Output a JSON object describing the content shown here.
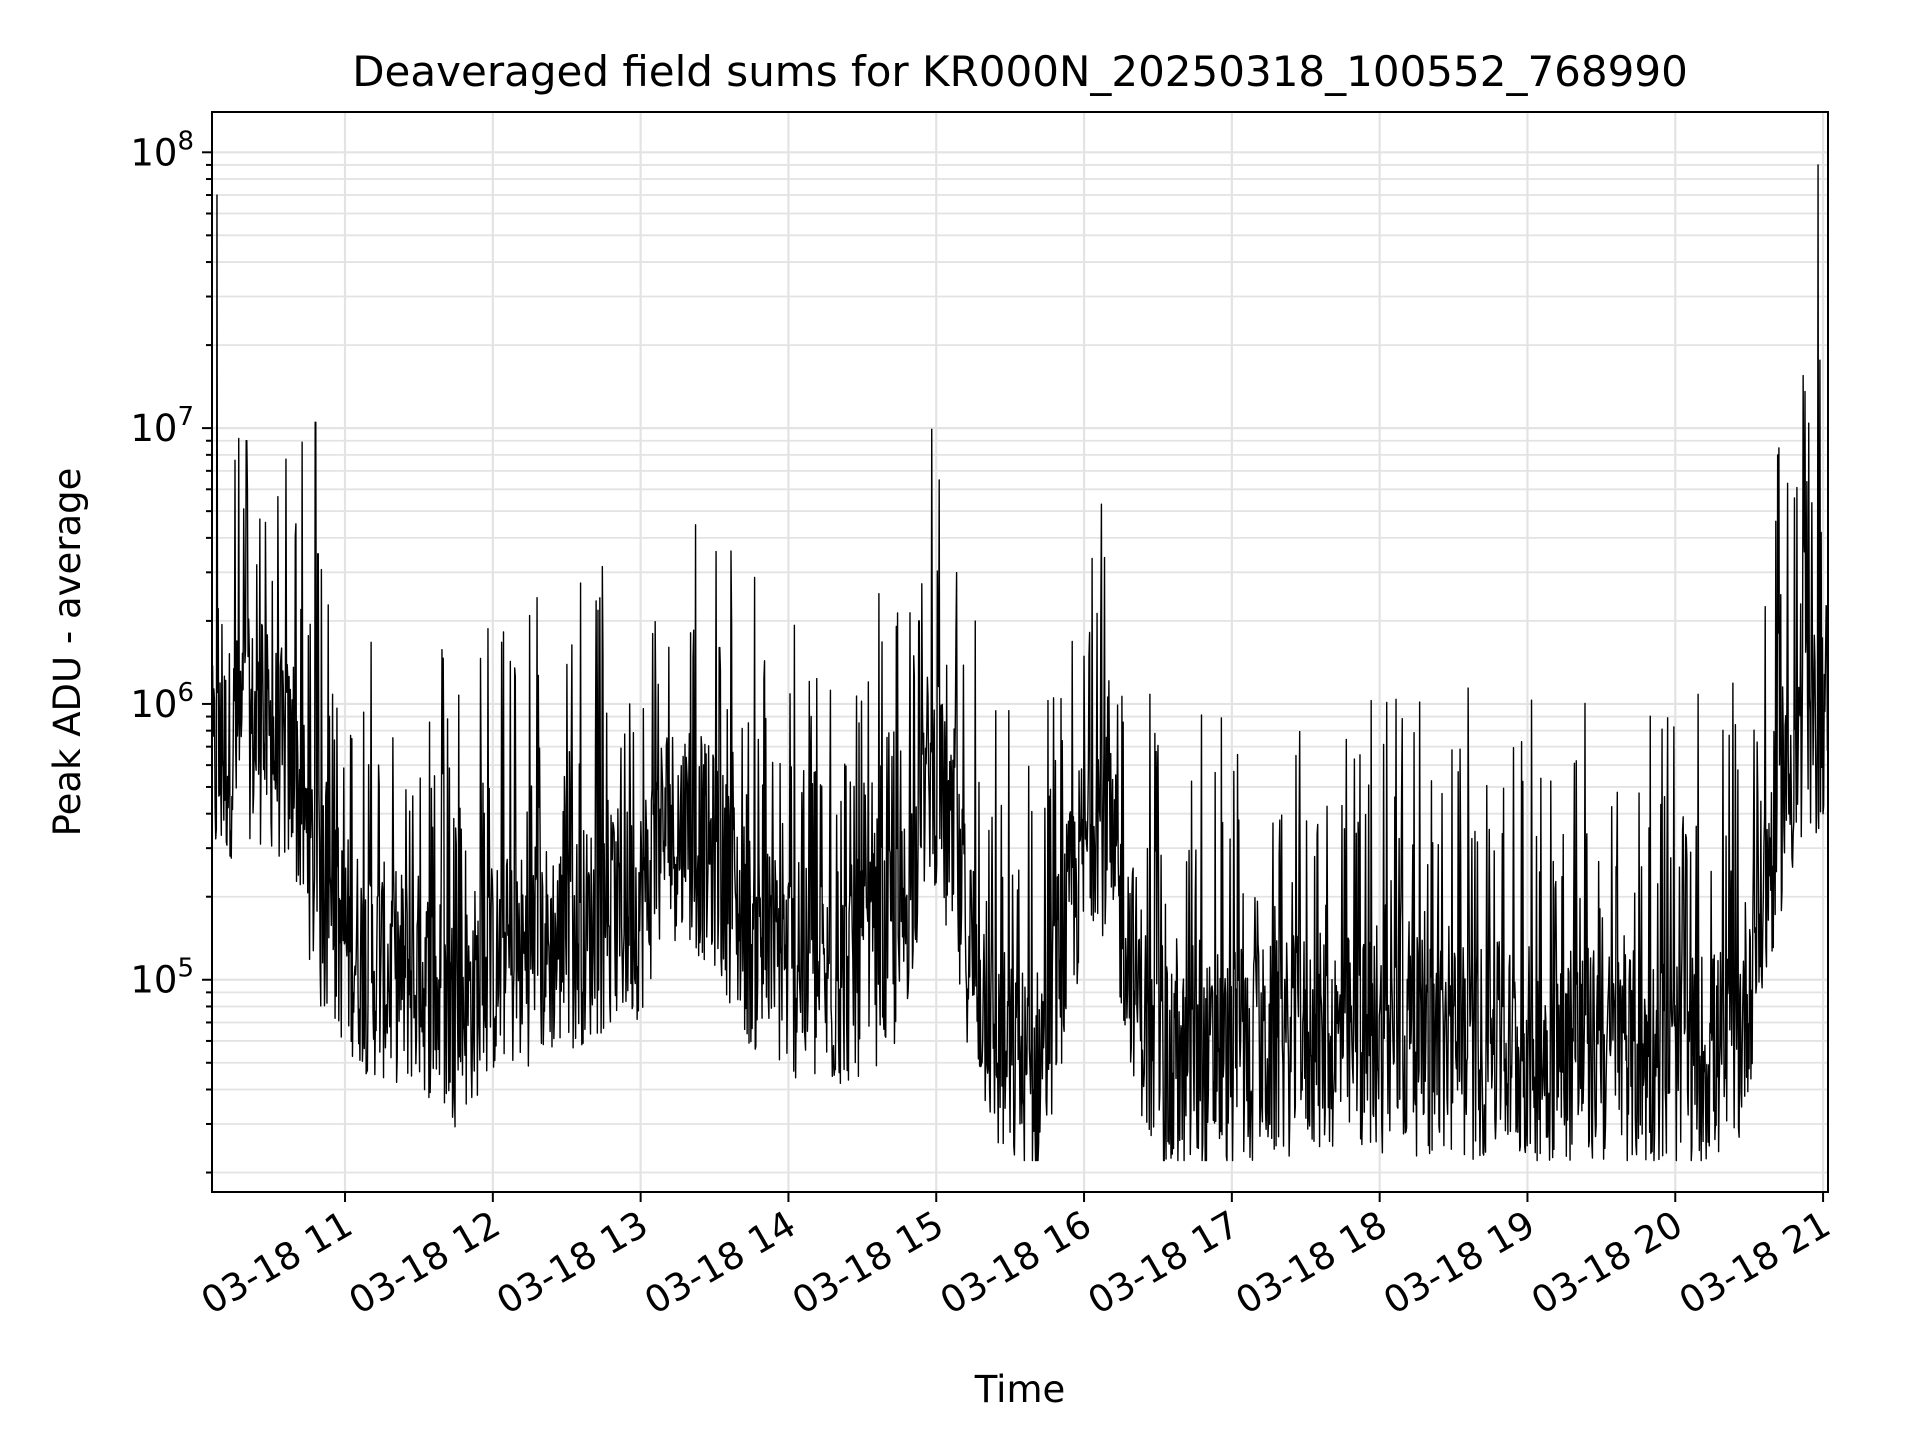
{
  "chart_data": {
    "type": "line",
    "title": "Deaveraged field sums for KR000N_20250318_100552_768990",
    "xlabel": "Time",
    "ylabel": "Peak ADU - average",
    "yscale": "log",
    "ylim": [
      17000,
      140000000
    ],
    "xlim": [
      "2025-03-18 10:06",
      "2025-03-18 21:02"
    ],
    "grid": true,
    "line_color": "#000000",
    "x_ticks": [
      "03-18 11",
      "03-18 12",
      "03-18 13",
      "03-18 14",
      "03-18 15",
      "03-18 16",
      "03-18 17",
      "03-18 18",
      "03-18 19",
      "03-18 20",
      "03-18 21"
    ],
    "y_ticks": [
      {
        "base": "10",
        "exp": "5",
        "value": 100000
      },
      {
        "base": "10",
        "exp": "6",
        "value": 1000000
      },
      {
        "base": "10",
        "exp": "7",
        "value": 10000000
      },
      {
        "base": "10",
        "exp": "8",
        "value": 100000000
      }
    ],
    "baseline": [
      [
        "2025-03-18 10:06",
        600000
      ],
      [
        "2025-03-18 10:20",
        900000
      ],
      [
        "2025-03-18 10:30",
        800000
      ],
      [
        "2025-03-18 10:40",
        600000
      ],
      [
        "2025-03-18 10:50",
        200000
      ],
      [
        "2025-03-18 11:10",
        120000
      ],
      [
        "2025-03-18 11:30",
        110000
      ],
      [
        "2025-03-18 11:45",
        80000
      ],
      [
        "2025-03-18 12:00",
        120000
      ],
      [
        "2025-03-18 12:30",
        150000
      ],
      [
        "2025-03-18 13:00",
        200000
      ],
      [
        "2025-03-18 13:10",
        400000
      ],
      [
        "2025-03-18 13:30",
        300000
      ],
      [
        "2025-03-18 13:45",
        150000
      ],
      [
        "2025-03-18 14:15",
        100000
      ],
      [
        "2025-03-18 14:45",
        150000
      ],
      [
        "2025-03-18 14:58",
        700000
      ],
      [
        "2025-03-18 15:10",
        200000
      ],
      [
        "2025-03-18 15:25",
        60000
      ],
      [
        "2025-03-18 15:40",
        45000
      ],
      [
        "2025-03-18 15:55",
        200000
      ],
      [
        "2025-03-18 16:05",
        500000
      ],
      [
        "2025-03-18 16:15",
        200000
      ],
      [
        "2025-03-18 16:30",
        45000
      ],
      [
        "2025-03-18 17:00",
        55000
      ],
      [
        "2025-03-18 17:30",
        65000
      ],
      [
        "2025-03-18 18:00",
        65000
      ],
      [
        "2025-03-18 18:30",
        60000
      ],
      [
        "2025-03-18 19:00",
        60000
      ],
      [
        "2025-03-18 19:30",
        58000
      ],
      [
        "2025-03-18 20:00",
        55000
      ],
      [
        "2025-03-18 20:25",
        60000
      ],
      [
        "2025-03-18 20:35",
        200000
      ],
      [
        "2025-03-18 20:45",
        600000
      ],
      [
        "2025-03-18 20:55",
        750000
      ],
      [
        "2025-03-18 21:02",
        1200000
      ]
    ],
    "spikes": [
      [
        "2025-03-18 10:08",
        70000000
      ],
      [
        "2025-03-18 10:20",
        9000000
      ],
      [
        "2025-03-18 10:40",
        4500000
      ],
      [
        "2025-03-18 10:48",
        10500000
      ],
      [
        "2025-03-18 10:49",
        3500000
      ],
      [
        "2025-03-18 10:42",
        2200000
      ],
      [
        "2025-03-18 14:53",
        2000000
      ],
      [
        "2025-03-18 15:08",
        1800000
      ],
      [
        "2025-03-18 13:32",
        1600000
      ],
      [
        "2025-03-18 16:02",
        1500000
      ],
      [
        "2025-03-18 20:52",
        15500000
      ],
      [
        "2025-03-18 20:58",
        90000000
      ]
    ]
  }
}
